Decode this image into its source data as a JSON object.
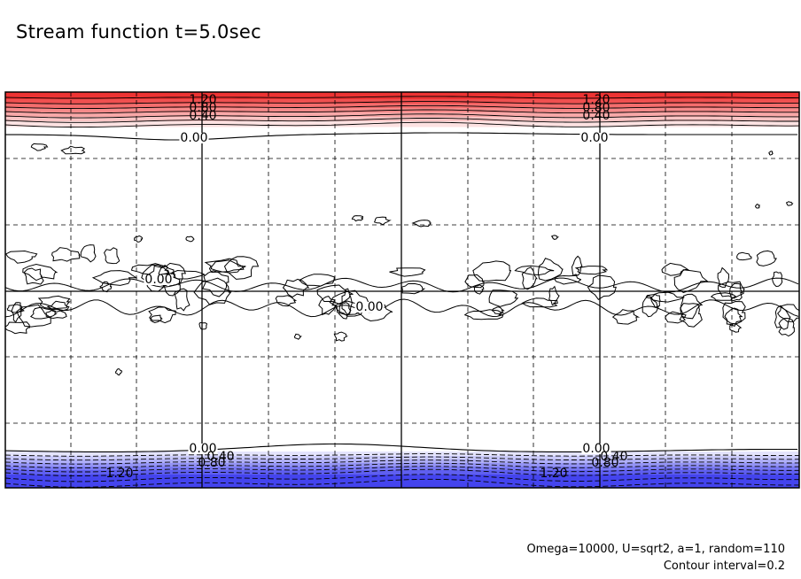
{
  "title": "Stream function t=5.0sec",
  "footnote": {
    "params": "Omega=10000, U=sqrt2, a=1, random=110",
    "interval": "Contour interval=0.2"
  },
  "chart_data": {
    "type": "heatmap",
    "title": "Stream function t=5.0sec",
    "xlabel": "",
    "ylabel": "",
    "grid": true,
    "colors": {
      "positive": "#ee3333",
      "negative": "#4444ee",
      "zero": "#ffffff",
      "contour": "#000000",
      "grid": "#000000"
    },
    "contour_interval": 0.2,
    "contour_labels": [
      {
        "text": "1.20",
        "band": "top",
        "column": 1
      },
      {
        "text": "0.80",
        "band": "top",
        "column": 1
      },
      {
        "text": "0.40",
        "band": "top",
        "column": 1
      },
      {
        "text": "0.00",
        "band": "top",
        "column": 1
      },
      {
        "text": "1.20",
        "band": "top",
        "column": 2
      },
      {
        "text": "0.80",
        "band": "top",
        "column": 2
      },
      {
        "text": "0.40",
        "band": "top",
        "column": 2
      },
      {
        "text": "0.00",
        "band": "top",
        "column": 2
      },
      {
        "text": "0.00",
        "band": "middle",
        "column": 1
      },
      {
        "text": "0.00",
        "band": "middle",
        "column": 2
      },
      {
        "text": "0.00",
        "band": "bottom",
        "column": 1
      },
      {
        "text": "0.40",
        "band": "bottom",
        "column": 1
      },
      {
        "text": "0.80",
        "band": "bottom",
        "column": 1
      },
      {
        "text": "1.20",
        "band": "bottom",
        "column": 1
      },
      {
        "text": "0.00",
        "band": "bottom",
        "column": 2
      },
      {
        "text": "0.40",
        "band": "bottom",
        "column": 2
      },
      {
        "text": "0.80",
        "band": "bottom",
        "column": 2
      },
      {
        "text": "1.20",
        "band": "bottom",
        "column": 2
      }
    ]
  }
}
